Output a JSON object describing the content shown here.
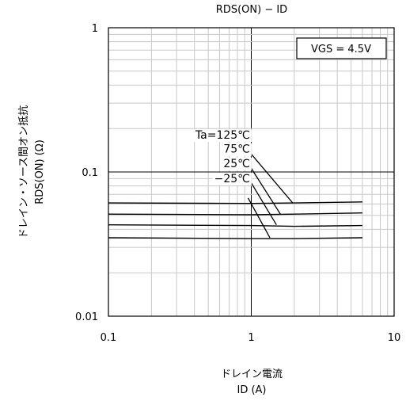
{
  "chart_data": {
    "type": "line",
    "title": "RDS(ON) − ID",
    "xlabel": "ドレイン電流",
    "xlabel_sub": "ID (A)",
    "ylabel": "ドレイン・ソース間オン抵抗",
    "ylabel_sub": "RDS(ON) (Ω)",
    "x_scale": "log",
    "y_scale": "log",
    "xlim": [
      0.1,
      10
    ],
    "ylim": [
      0.01,
      1
    ],
    "x_ticks": [
      {
        "value": 0.1,
        "label": "0.1"
      },
      {
        "value": 1,
        "label": "1"
      },
      {
        "value": 10,
        "label": "10"
      }
    ],
    "y_ticks": [
      {
        "value": 0.01,
        "label": "0.01"
      },
      {
        "value": 0.1,
        "label": "0.1"
      },
      {
        "value": 1,
        "label": "1"
      }
    ],
    "grid": true,
    "condition_box": "VGS = 4.5V",
    "series": [
      {
        "name": "Ta=125℃",
        "x": [
          0.1,
          1,
          2,
          6
        ],
        "y": [
          0.061,
          0.0605,
          0.061,
          0.062
        ]
      },
      {
        "name": "75℃",
        "x": [
          0.1,
          1,
          2,
          6
        ],
        "y": [
          0.051,
          0.0505,
          0.051,
          0.052
        ]
      },
      {
        "name": "25℃",
        "x": [
          0.1,
          1,
          2,
          6
        ],
        "y": [
          0.043,
          0.0425,
          0.042,
          0.0425
        ]
      },
      {
        "name": "−25℃",
        "x": [
          0.1,
          1,
          2,
          6
        ],
        "y": [
          0.035,
          0.0345,
          0.0345,
          0.035
        ]
      }
    ],
    "annotations": [
      {
        "label": "Ta=125℃",
        "label_at": [
          0.98,
          0.17
        ],
        "line_from": [
          1.0,
          0.133
        ],
        "line_to": [
          1.95,
          0.061
        ]
      },
      {
        "label": "75℃",
        "label_at": [
          0.98,
          0.136
        ],
        "line_from": [
          1.0,
          0.106
        ],
        "line_to": [
          1.6,
          0.051
        ]
      },
      {
        "label": "25℃",
        "label_at": [
          0.98,
          0.108
        ],
        "line_from": [
          1.0,
          0.084
        ],
        "line_to": [
          1.5,
          0.043
        ]
      },
      {
        "label": "−25℃",
        "label_at": [
          0.98,
          0.085
        ],
        "line_from": [
          0.95,
          0.066
        ],
        "line_to": [
          1.35,
          0.035
        ]
      }
    ]
  }
}
